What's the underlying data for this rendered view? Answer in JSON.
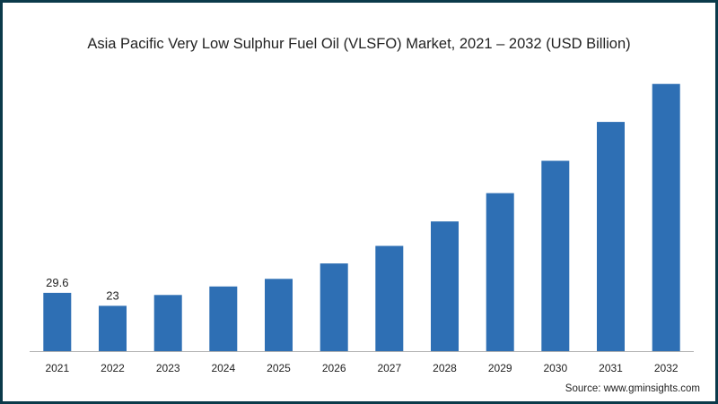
{
  "chart_data": {
    "type": "bar",
    "title": "Asia Pacific Very Low Sulphur Fuel Oil (VLSFO) Market, 2021 – 2032 (USD Billion)",
    "xlabel": "",
    "ylabel": "",
    "categories": [
      "2021",
      "2022",
      "2023",
      "2024",
      "2025",
      "2026",
      "2027",
      "2028",
      "2029",
      "2030",
      "2031",
      "2032"
    ],
    "values": [
      29.6,
      23,
      28.5,
      32.8,
      36.7,
      44.5,
      53.4,
      65.8,
      80.2,
      96.6,
      116.3,
      135.6
    ],
    "data_labels": [
      "29.6",
      "23",
      "",
      "",
      "",
      "",
      "",
      "",
      "",
      "",
      "",
      ""
    ],
    "ylim": [
      0,
      140
    ],
    "grid": false,
    "legend": "none",
    "bar_color": "#2e6fb4"
  },
  "source": "Source: www.gminsights.com",
  "colors": {
    "frame": "#0b3a4a",
    "axis": "#b0b0b0",
    "text": "#222222"
  }
}
